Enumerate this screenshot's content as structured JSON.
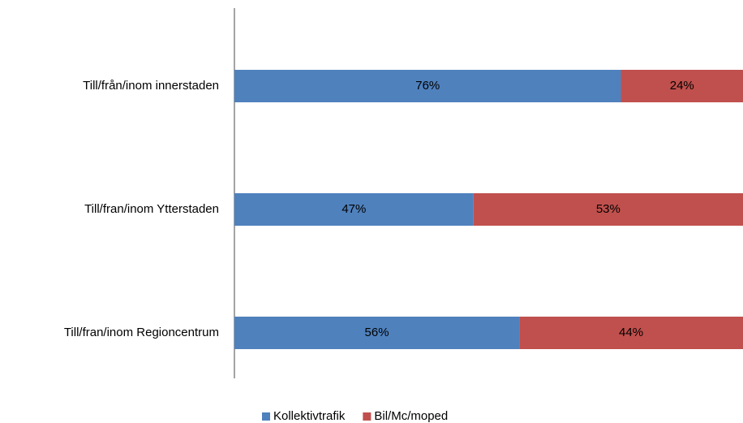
{
  "chart_data": {
    "type": "stacked-bar-horizontal",
    "categories": [
      "Till/från/inom innerstaden",
      "Till/fran/inom Ytterstaden",
      "Till/fran/inom Regioncentrum"
    ],
    "series": [
      {
        "name": "Kollektivtrafik",
        "color": "#4f81bd",
        "values": [
          76,
          47,
          56
        ],
        "value_labels": [
          "76%",
          "47%",
          "56%"
        ]
      },
      {
        "name": "Bil/Mc/moped",
        "color": "#c0504d",
        "values": [
          24,
          53,
          44
        ],
        "value_labels": [
          "24%",
          "53%",
          "44%"
        ]
      }
    ],
    "legend": "bottom"
  }
}
